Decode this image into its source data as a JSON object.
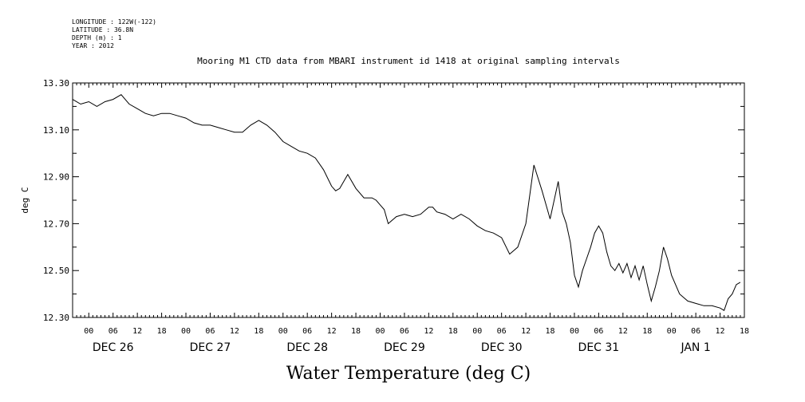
{
  "meta_lines": [
    "LONGITUDE : 122W(-122)",
    "LATITUDE : 36.8N",
    "DEPTH (m) : 1",
    "YEAR : 2012"
  ],
  "chart_data": {
    "type": "line",
    "title": "Mooring M1 CTD data from MBARI instrument id 1418 at original sampling intervals",
    "xlabel": "Water Temperature (deg C)",
    "ylabel": "deg C",
    "xlim_hours": [
      -4,
      162
    ],
    "ylim": [
      12.3,
      13.3
    ],
    "y_ticks": [
      "12.30",
      "12.50",
      "12.70",
      "12.90",
      "13.10",
      "13.30"
    ],
    "hour_labels": [
      "00",
      "06",
      "12",
      "18"
    ],
    "day_labels": [
      "DEC 26",
      "DEC 27",
      "DEC 28",
      "DEC 29",
      "DEC 30",
      "DEC 31",
      "JAN  1"
    ],
    "series": [
      {
        "x": [
          -4,
          -2,
          0,
          2,
          4,
          6,
          8,
          9,
          10,
          12,
          14,
          16,
          18,
          20,
          22,
          24,
          26,
          28,
          30,
          32,
          34,
          36,
          38,
          40,
          42,
          44,
          46,
          47,
          48,
          50,
          52,
          54,
          56,
          58,
          60,
          61,
          62,
          64,
          66,
          68,
          70,
          71,
          72,
          73,
          74,
          76,
          78,
          80,
          82,
          84,
          85,
          86,
          88,
          90,
          92,
          94,
          96,
          98,
          100,
          102,
          104,
          106,
          108,
          110,
          112,
          114,
          116,
          117,
          118,
          119,
          120,
          121,
          122,
          123,
          124,
          125,
          126,
          127,
          128,
          129,
          130,
          131,
          132,
          133,
          134,
          135,
          136,
          137,
          138,
          139,
          140,
          141,
          142,
          143,
          144,
          146,
          148,
          150,
          152,
          154,
          156,
          157,
          158,
          159,
          160,
          161
        ],
        "y": [
          13.23,
          13.21,
          13.22,
          13.2,
          13.22,
          13.23,
          13.25,
          13.23,
          13.21,
          13.19,
          13.17,
          13.16,
          13.17,
          13.17,
          13.16,
          13.15,
          13.13,
          13.12,
          13.12,
          13.11,
          13.1,
          13.09,
          13.09,
          13.12,
          13.14,
          13.12,
          13.09,
          13.07,
          13.05,
          13.03,
          13.01,
          13.0,
          12.98,
          12.93,
          12.86,
          12.84,
          12.85,
          12.91,
          12.85,
          12.81,
          12.81,
          12.8,
          12.78,
          12.76,
          12.7,
          12.73,
          12.74,
          12.73,
          12.74,
          12.77,
          12.77,
          12.75,
          12.74,
          12.72,
          12.74,
          12.72,
          12.69,
          12.67,
          12.66,
          12.64,
          12.57,
          12.6,
          12.7,
          12.95,
          12.84,
          12.72,
          12.88,
          12.75,
          12.7,
          12.62,
          12.48,
          12.43,
          12.5,
          12.55,
          12.6,
          12.66,
          12.69,
          12.66,
          12.58,
          12.52,
          12.5,
          12.53,
          12.49,
          12.53,
          12.47,
          12.52,
          12.46,
          12.52,
          12.44,
          12.37,
          12.43,
          12.5,
          12.6,
          12.55,
          12.48,
          12.4,
          12.37,
          12.36,
          12.35,
          12.35,
          12.34,
          12.33,
          12.38,
          12.4,
          12.44,
          12.45
        ]
      }
    ]
  }
}
